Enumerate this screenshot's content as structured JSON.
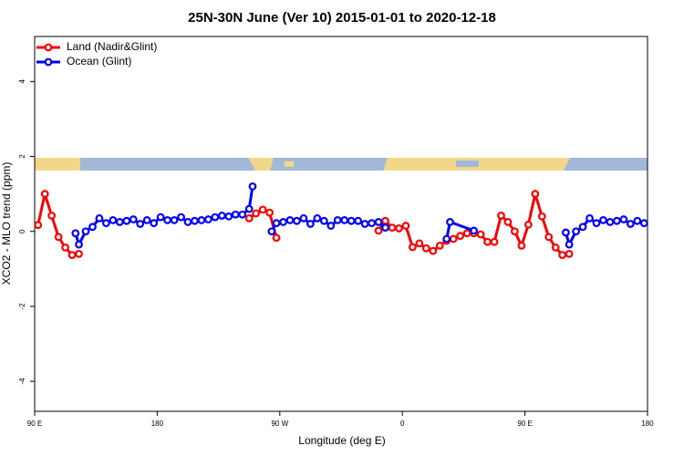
{
  "chart_data": {
    "type": "line",
    "title": "25N-30N June (Ver 10)   2015-01-01 to 2020-12-18",
    "xlabel": "Longitude (deg E)",
    "ylabel": "XCO2 - MLO trend (ppm)",
    "xlim": [
      90,
      540
    ],
    "ylim": [
      -4.8,
      5.2
    ],
    "xticks": [
      {
        "value": 90,
        "label": "90 E"
      },
      180,
      {
        "value": 270,
        "label": "90 W"
      },
      {
        "value": 360,
        "label": "0"
      },
      {
        "value": 450,
        "label": "90 E"
      },
      {
        "value": 540,
        "label": "180"
      }
    ],
    "yticks": [
      -4,
      -2,
      0,
      2,
      4
    ],
    "legend": "top-left",
    "series": [
      {
        "name": "Land (Nadir&Glint)",
        "color": "#ff0000",
        "x": [
          92.5,
          97.5,
          102.5,
          107.5,
          112.5,
          117.5,
          122.5,
          185,
          247.5,
          252.5,
          257.5,
          262.5,
          267.5,
          305,
          342.5,
          347.5,
          352.5,
          357.5,
          362.5,
          367.5,
          372.5,
          377.5,
          382.5,
          387.5,
          392.5,
          397.5,
          402.5,
          407.5,
          412.5,
          417.5,
          422.5,
          427.5,
          432.5,
          437.5,
          442.5,
          447.5,
          452.5,
          457.5,
          462.5,
          467.5,
          472.5,
          477.5,
          482.5
        ],
        "values": [
          0.17,
          1.0,
          0.42,
          -0.15,
          -0.43,
          -0.63,
          -0.6,
          null,
          0.35,
          0.48,
          0.58,
          0.5,
          -0.17,
          null,
          0.02,
          0.28,
          0.1,
          0.08,
          0.15,
          -0.42,
          -0.32,
          -0.45,
          -0.52,
          -0.38,
          -0.25,
          -0.2,
          -0.12,
          -0.05,
          -0.05,
          -0.08,
          -0.28,
          -0.28,
          0.42,
          0.25,
          0.0,
          -0.38,
          0.18,
          1.0,
          0.4,
          -0.15,
          -0.43,
          -0.63,
          -0.6
        ]
      },
      {
        "name": "Ocean (Glint)",
        "color": "#0000ff",
        "x": [
          120,
          122.5,
          127.5,
          132.5,
          137.5,
          142.5,
          147.5,
          152.5,
          157.5,
          162.5,
          167.5,
          172.5,
          177.5,
          182.5,
          187.5,
          192.5,
          197.5,
          202.5,
          207.5,
          212.5,
          217.5,
          222.5,
          227.5,
          232.5,
          237.5,
          242.5,
          247.5,
          250,
          257,
          264,
          267.5,
          272.5,
          277.5,
          282.5,
          287.5,
          292.5,
          297.5,
          302.5,
          307.5,
          312.5,
          317.5,
          322.5,
          327.5,
          332.5,
          337.5,
          342.5,
          347.5,
          370,
          392.5,
          395,
          412.5,
          450,
          480,
          482.5,
          487.5,
          492.5,
          497.5,
          502.5,
          507.5,
          512.5,
          517.5,
          522.5,
          527.5,
          532.5,
          537.5
        ],
        "values": [
          -0.05,
          -0.35,
          0.0,
          0.12,
          0.35,
          0.22,
          0.3,
          0.25,
          0.28,
          0.32,
          0.2,
          0.3,
          0.22,
          0.38,
          0.3,
          0.3,
          0.38,
          0.25,
          0.28,
          0.3,
          0.32,
          0.38,
          0.42,
          0.4,
          0.45,
          0.45,
          0.6,
          1.2,
          null,
          0.0,
          0.22,
          0.25,
          0.3,
          0.28,
          0.35,
          0.2,
          0.35,
          0.28,
          0.15,
          0.3,
          0.3,
          0.28,
          0.28,
          0.2,
          0.22,
          0.25,
          0.1,
          null,
          -0.2,
          0.25,
          0.02,
          null,
          -0.03,
          -0.35,
          0.0,
          0.12,
          0.35,
          0.22,
          0.3,
          0.25,
          0.28,
          0.32,
          0.2,
          0.28,
          0.22
        ]
      }
    ]
  }
}
